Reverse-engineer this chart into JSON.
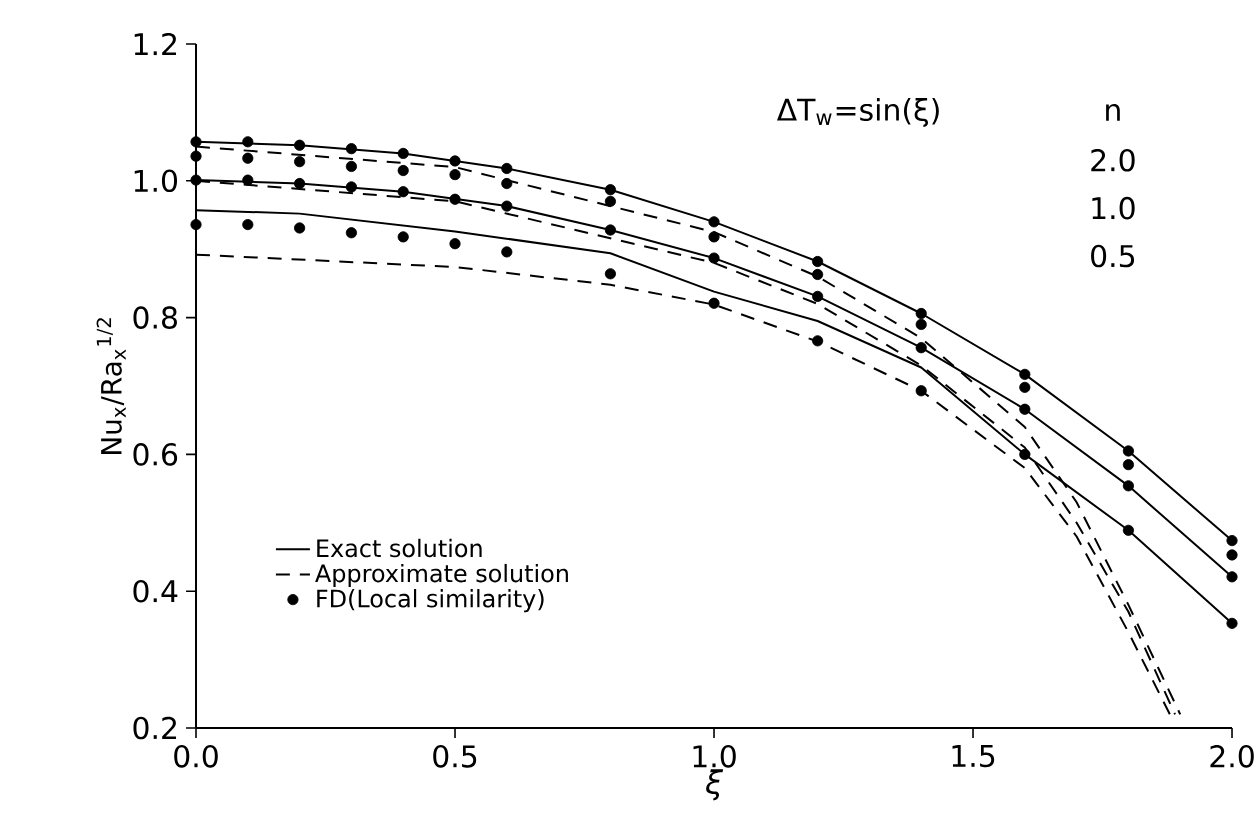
{
  "chart_data": {
    "type": "line",
    "xlabel": "ξ",
    "ylabel": "Nu$_{x}$/Ra$_{x}$$^{1/2}$",
    "xlim": [
      0,
      2
    ],
    "ylim": [
      0.2,
      1.2
    ],
    "xticks": [
      {
        "value": 0,
        "label": "0.0"
      },
      {
        "value": 0.5,
        "label": "0.5"
      },
      {
        "value": 1,
        "label": "1.0"
      },
      {
        "value": 1.5,
        "label": "1.5"
      },
      {
        "value": 2,
        "label": "2.0"
      }
    ],
    "yticks": [
      {
        "value": 0.2,
        "label": "0.2"
      },
      {
        "value": 0.4,
        "label": "0.4"
      },
      {
        "value": 0.6,
        "label": "0.6"
      },
      {
        "value": 0.8,
        "label": "0.8"
      },
      {
        "value": 1,
        "label": "1.0"
      },
      {
        "value": 1.2,
        "label": "1.2"
      }
    ],
    "legend": "bottom left",
    "grid": false,
    "annotations": [
      "ΔT$_{w}$=sin(ξ)",
      "n",
      "2.0",
      "1.0",
      "0.5"
    ],
    "series": [
      {
        "name": "Exact solution",
        "type": "line",
        "marker": "none",
        "line_style": "solid",
        "color": "#000000",
        "x": [
          0,
          0.2,
          0.4,
          0.6,
          0.8,
          1.0,
          1.2,
          1.4,
          1.6,
          1.8,
          2.0
        ],
        "values": [
          1.057,
          1.052,
          1.04,
          1.018,
          0.987,
          0.94,
          0.882,
          0.806,
          0.717,
          0.605,
          0.474
        ]
      },
      {
        "type": "line",
        "marker": "none",
        "line_style": "solid",
        "color": "#000000",
        "x": [
          0,
          0.2,
          0.4,
          0.6,
          0.8,
          1.0,
          1.2,
          1.4,
          1.6,
          1.8,
          2.0
        ],
        "values": [
          1.001,
          0.996,
          0.984,
          0.963,
          0.928,
          0.887,
          0.831,
          0.756,
          0.666,
          0.554,
          0.421
        ]
      },
      {
        "type": "line",
        "marker": "none",
        "line_style": "solid",
        "color": "#000000",
        "x": [
          0,
          0.2,
          0.5,
          0.8,
          1.0,
          1.2,
          1.4,
          1.6,
          1.8,
          2.0
        ],
        "values": [
          0.957,
          0.952,
          0.926,
          0.894,
          0.838,
          0.795,
          0.727,
          0.6,
          0.489,
          0.353
        ]
      },
      {
        "name": "Approximate solution",
        "type": "line",
        "marker": "none",
        "line_style": "dashed",
        "color": "#000000",
        "x": [
          0,
          0.5,
          1.0,
          1.2,
          1.4,
          1.6,
          1.7,
          1.8,
          1.9
        ],
        "values": [
          1.05,
          1.02,
          0.925,
          0.86,
          0.77,
          0.64,
          0.53,
          0.38,
          0.22
        ]
      },
      {
        "type": "line",
        "marker": "none",
        "line_style": "dashed",
        "color": "#000000",
        "x": [
          0,
          0.5,
          1.0,
          1.2,
          1.4,
          1.6,
          1.7,
          1.8,
          1.89
        ],
        "values": [
          1.0,
          0.97,
          0.88,
          0.82,
          0.73,
          0.61,
          0.5,
          0.37,
          0.22
        ]
      },
      {
        "type": "line",
        "marker": "none",
        "line_style": "dashed",
        "color": "#000000",
        "x": [
          0,
          0.5,
          0.8,
          1.0,
          1.2,
          1.4,
          1.6,
          1.7,
          1.8,
          1.88
        ],
        "values": [
          0.892,
          0.874,
          0.848,
          0.819,
          0.765,
          0.693,
          0.58,
          0.48,
          0.34,
          0.22
        ]
      },
      {
        "name": "FD(Local similarity)",
        "type": "scatter",
        "marker": "circle",
        "color": "#000000",
        "x": [
          0,
          0.1,
          0.2,
          0.3,
          0.4,
          0.5,
          0.6,
          0.8,
          1.0,
          1.2,
          1.4,
          1.6,
          1.8,
          2.0
        ],
        "values": [
          1.057,
          1.057,
          1.052,
          1.047,
          1.04,
          1.029,
          1.018,
          0.987,
          0.94,
          0.882,
          0.806,
          0.717,
          0.605,
          0.474
        ]
      },
      {
        "type": "scatter",
        "marker": "circle",
        "color": "#000000",
        "x": [
          0,
          0.1,
          0.2,
          0.3,
          0.4,
          0.5,
          0.6,
          0.8,
          1.0,
          1.2,
          1.4,
          1.6,
          1.8,
          2.0
        ],
        "values": [
          1.036,
          1.033,
          1.028,
          1.021,
          1.015,
          1.009,
          0.996,
          0.97,
          0.918,
          0.863,
          0.79,
          0.698,
          0.585,
          0.453
        ]
      },
      {
        "type": "scatter",
        "marker": "circle",
        "color": "#000000",
        "x": [
          0,
          0.1,
          0.2,
          0.3,
          0.4,
          0.5,
          0.6,
          0.8,
          1.0,
          1.2,
          1.4,
          1.6,
          1.8,
          2.0
        ],
        "values": [
          1.001,
          1.001,
          0.996,
          0.991,
          0.984,
          0.973,
          0.963,
          0.928,
          0.887,
          0.831,
          0.756,
          0.666,
          0.554,
          0.421
        ]
      },
      {
        "type": "scatter",
        "marker": "circle",
        "color": "#000000",
        "x": [
          0,
          0.1,
          0.2,
          0.3,
          0.4,
          0.5,
          0.6,
          0.8,
          1.0,
          1.2,
          1.4,
          1.6,
          1.8,
          2.0
        ],
        "values": [
          0.936,
          0.936,
          0.931,
          0.924,
          0.918,
          0.908,
          0.896,
          0.864,
          0.821,
          0.766,
          0.693,
          0.6,
          0.489,
          0.353
        ]
      }
    ]
  }
}
